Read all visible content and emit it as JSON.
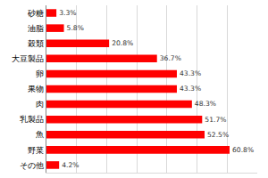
{
  "chart_data": {
    "type": "bar",
    "orientation": "horizontal",
    "categories": [
      "砂糖",
      "油脂",
      "穀類",
      "大豆製品",
      "卵",
      "果物",
      "肉",
      "乳製品",
      "魚",
      "野菜",
      "その他"
    ],
    "values": [
      3.3,
      5.8,
      20.8,
      36.7,
      43.3,
      43.3,
      48.3,
      51.7,
      52.5,
      60.8,
      4.2
    ],
    "value_labels": [
      "3.3%",
      "5.8%",
      "20.8%",
      "36.7%",
      "43.3%",
      "43.3%",
      "48.3%",
      "51.7%",
      "52.5%",
      "60.8%",
      "4.2%"
    ],
    "data_labels": true,
    "color": "#ff0000",
    "xlim": [
      0,
      70
    ],
    "xticks": [
      0,
      10,
      20,
      30,
      40,
      50,
      60,
      70
    ],
    "grid": true,
    "tick_labels": "y"
  }
}
